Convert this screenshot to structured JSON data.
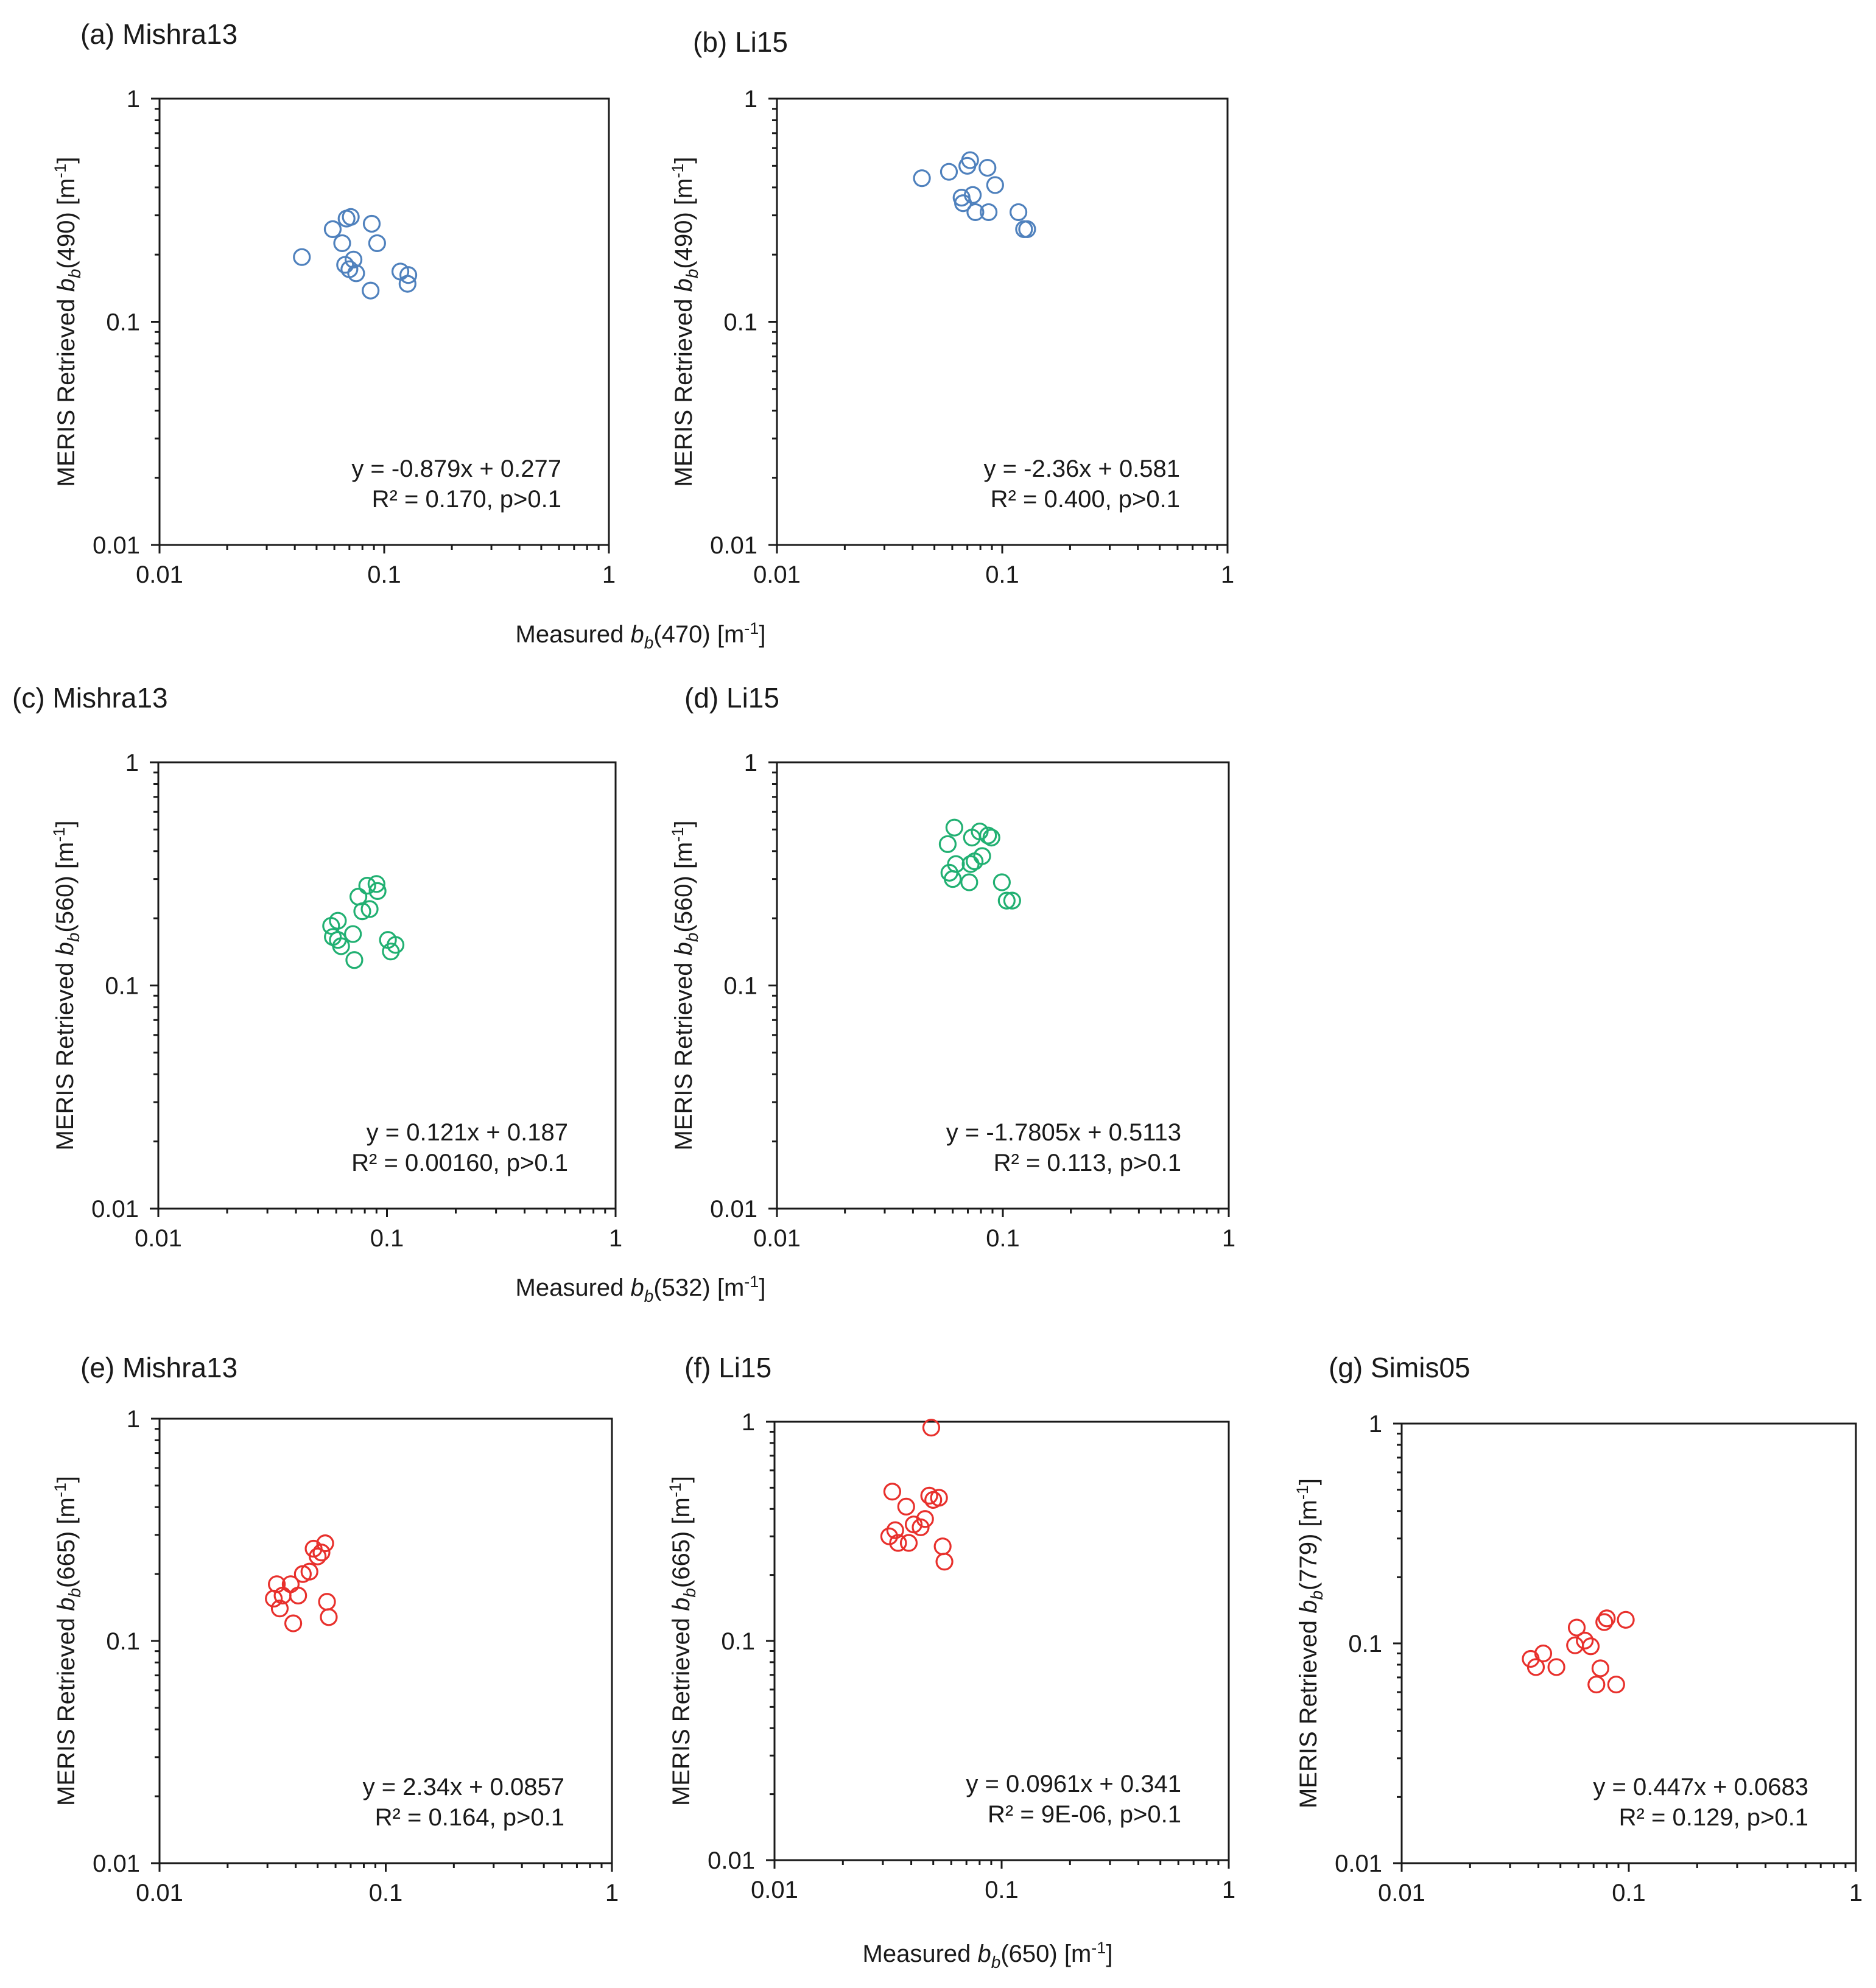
{
  "chart_data": [
    {
      "type": "scatter",
      "title": "(a) Mishra13",
      "ylabel_main": "MERIS Retrieved ",
      "ylabel_sym": "b",
      "ylabel_sub": "b",
      "ylabel_rest": "(490) [m",
      "ylabel_sup": "-1",
      "ylabel_end": "]",
      "xlim": [
        0.01,
        1
      ],
      "ylim": [
        0.01,
        1
      ],
      "xscale": "log",
      "yscale": "log",
      "tick_labels": [
        "0.01",
        "0.1",
        "1"
      ],
      "annotation": [
        "y = -0.879x + 0.277",
        "R² = 0.170, p>0.1"
      ],
      "color": "#4f81bd",
      "points": [
        [
          0.043,
          0.195
        ],
        [
          0.059,
          0.26
        ],
        [
          0.065,
          0.225
        ],
        [
          0.068,
          0.29
        ],
        [
          0.071,
          0.295
        ],
        [
          0.067,
          0.18
        ],
        [
          0.07,
          0.172
        ],
        [
          0.073,
          0.19
        ],
        [
          0.075,
          0.165
        ],
        [
          0.088,
          0.275
        ],
        [
          0.093,
          0.225
        ],
        [
          0.087,
          0.138
        ],
        [
          0.118,
          0.168
        ],
        [
          0.127,
          0.148
        ],
        [
          0.128,
          0.162
        ]
      ]
    },
    {
      "type": "scatter",
      "title": "(b) Li15",
      "ylabel_main": "MERIS Retrieved ",
      "ylabel_sym": "b",
      "ylabel_sub": "b",
      "ylabel_rest": "(490) [m",
      "ylabel_sup": "-1",
      "ylabel_end": "]",
      "xlim": [
        0.01,
        1
      ],
      "ylim": [
        0.01,
        1
      ],
      "xscale": "log",
      "yscale": "log",
      "tick_labels": [
        "0.01",
        "0.1",
        "1"
      ],
      "annotation": [
        "y = -2.36x + 0.581",
        "R² = 0.400, p>0.1"
      ],
      "color": "#4f81bd",
      "points": [
        [
          0.044,
          0.44
        ],
        [
          0.058,
          0.47
        ],
        [
          0.066,
          0.36
        ],
        [
          0.067,
          0.34
        ],
        [
          0.07,
          0.5
        ],
        [
          0.072,
          0.53
        ],
        [
          0.074,
          0.37
        ],
        [
          0.076,
          0.31
        ],
        [
          0.086,
          0.49
        ],
        [
          0.087,
          0.31
        ],
        [
          0.093,
          0.41
        ],
        [
          0.118,
          0.31
        ],
        [
          0.125,
          0.26
        ],
        [
          0.129,
          0.26
        ]
      ]
    },
    {
      "type": "scatter",
      "title": "(c) Mishra13",
      "ylabel_main": "MERIS Retrieved ",
      "ylabel_sym": "b",
      "ylabel_sub": "b",
      "ylabel_rest": "(560) [m",
      "ylabel_sup": "-1",
      "ylabel_end": "]",
      "xlim": [
        0.01,
        1
      ],
      "ylim": [
        0.01,
        1
      ],
      "xscale": "log",
      "yscale": "log",
      "tick_labels": [
        "0.01",
        "0.1",
        "1"
      ],
      "annotation": [
        "y = 0.121x + 0.187",
        "R² = 0.00160, p>0.1"
      ],
      "color": "#21b072",
      "points": [
        [
          0.057,
          0.185
        ],
        [
          0.058,
          0.165
        ],
        [
          0.061,
          0.195
        ],
        [
          0.061,
          0.16
        ],
        [
          0.063,
          0.15
        ],
        [
          0.071,
          0.17
        ],
        [
          0.072,
          0.13
        ],
        [
          0.075,
          0.25
        ],
        [
          0.078,
          0.215
        ],
        [
          0.082,
          0.28
        ],
        [
          0.084,
          0.22
        ],
        [
          0.09,
          0.285
        ],
        [
          0.091,
          0.265
        ],
        [
          0.101,
          0.16
        ],
        [
          0.104,
          0.142
        ],
        [
          0.109,
          0.152
        ]
      ]
    },
    {
      "type": "scatter",
      "title": "(d) Li15",
      "ylabel_main": "MERIS Retrieved ",
      "ylabel_sym": "b",
      "ylabel_sub": "b",
      "ylabel_rest": "(560) [m",
      "ylabel_sup": "-1",
      "ylabel_end": "]",
      "xlim": [
        0.01,
        1
      ],
      "ylim": [
        0.01,
        1
      ],
      "xscale": "log",
      "yscale": "log",
      "tick_labels": [
        "0.01",
        "0.1",
        "1"
      ],
      "annotation": [
        "y = -1.7805x + 0.5113",
        "R² = 0.113, p>0.1"
      ],
      "color": "#21b072",
      "points": [
        [
          0.057,
          0.43
        ],
        [
          0.058,
          0.32
        ],
        [
          0.06,
          0.3
        ],
        [
          0.061,
          0.51
        ],
        [
          0.062,
          0.35
        ],
        [
          0.071,
          0.29
        ],
        [
          0.072,
          0.35
        ],
        [
          0.073,
          0.46
        ],
        [
          0.075,
          0.36
        ],
        [
          0.079,
          0.49
        ],
        [
          0.081,
          0.38
        ],
        [
          0.086,
          0.47
        ],
        [
          0.089,
          0.46
        ],
        [
          0.099,
          0.29
        ],
        [
          0.104,
          0.24
        ],
        [
          0.11,
          0.24
        ]
      ]
    },
    {
      "type": "scatter",
      "title": "(e) Mishra13",
      "ylabel_main": "MERIS Retrieved ",
      "ylabel_sym": "b",
      "ylabel_sub": "b",
      "ylabel_rest": "(665) [m",
      "ylabel_sup": "-1",
      "ylabel_end": "]",
      "xlim": [
        0.01,
        1
      ],
      "ylim": [
        0.01,
        1
      ],
      "xscale": "log",
      "yscale": "log",
      "tick_labels": [
        "0.01",
        "0.1",
        "1"
      ],
      "annotation": [
        "y = 2.34x + 0.0857",
        "R² = 0.164, p>0.1"
      ],
      "color": "#e8302c",
      "points": [
        [
          0.032,
          0.155
        ],
        [
          0.033,
          0.18
        ],
        [
          0.034,
          0.14
        ],
        [
          0.035,
          0.16
        ],
        [
          0.038,
          0.18
        ],
        [
          0.039,
          0.12
        ],
        [
          0.041,
          0.16
        ],
        [
          0.043,
          0.2
        ],
        [
          0.046,
          0.205
        ],
        [
          0.048,
          0.26
        ],
        [
          0.05,
          0.24
        ],
        [
          0.052,
          0.25
        ],
        [
          0.054,
          0.275
        ],
        [
          0.055,
          0.15
        ],
        [
          0.056,
          0.128
        ]
      ]
    },
    {
      "type": "scatter",
      "title": "(f) Li15",
      "ylabel_main": "MERIS Retrieved ",
      "ylabel_sym": "b",
      "ylabel_sub": "b",
      "ylabel_rest": "(665) [m",
      "ylabel_sup": "-1",
      "ylabel_end": "]",
      "xlim": [
        0.01,
        1
      ],
      "ylim": [
        0.01,
        1
      ],
      "xscale": "log",
      "yscale": "log",
      "tick_labels": [
        "0.01",
        "0.1",
        "1"
      ],
      "annotation": [
        "y = 0.0961x + 0.341",
        "R² = 9E-06, p>0.1"
      ],
      "color": "#e8302c",
      "points": [
        [
          0.032,
          0.3
        ],
        [
          0.033,
          0.48
        ],
        [
          0.034,
          0.32
        ],
        [
          0.035,
          0.28
        ],
        [
          0.038,
          0.41
        ],
        [
          0.039,
          0.28
        ],
        [
          0.041,
          0.34
        ],
        [
          0.044,
          0.33
        ],
        [
          0.046,
          0.36
        ],
        [
          0.048,
          0.46
        ],
        [
          0.049,
          0.94
        ],
        [
          0.05,
          0.44
        ],
        [
          0.053,
          0.45
        ],
        [
          0.055,
          0.27
        ],
        [
          0.056,
          0.23
        ]
      ]
    },
    {
      "type": "scatter",
      "title": "(g) Simis05",
      "ylabel_main": "MERIS Retrieved ",
      "ylabel_sym": "b",
      "ylabel_sub": "b",
      "ylabel_rest": "(779) [m",
      "ylabel_sup": "-1",
      "ylabel_end": "]",
      "xlim": [
        0.01,
        1
      ],
      "ylim": [
        0.01,
        1
      ],
      "xscale": "log",
      "yscale": "log",
      "tick_labels": [
        "0.01",
        "0.1",
        "1"
      ],
      "annotation": [
        "y = 0.447x + 0.0683",
        "R² = 0.129, p>0.1"
      ],
      "color": "#e8302c",
      "points": [
        [
          0.037,
          0.085
        ],
        [
          0.039,
          0.078
        ],
        [
          0.042,
          0.09
        ],
        [
          0.048,
          0.078
        ],
        [
          0.058,
          0.098
        ],
        [
          0.059,
          0.118
        ],
        [
          0.064,
          0.103
        ],
        [
          0.068,
          0.097
        ],
        [
          0.072,
          0.065
        ],
        [
          0.075,
          0.077
        ],
        [
          0.078,
          0.125
        ],
        [
          0.08,
          0.13
        ],
        [
          0.088,
          0.065
        ],
        [
          0.097,
          0.128
        ]
      ]
    }
  ],
  "shared_xlabels": [
    {
      "main": "Measured ",
      "sym": "b",
      "sub": "b",
      "rest": "(470) [m",
      "sup": "-1",
      "end": "]"
    },
    {
      "main": "Measured ",
      "sym": "b",
      "sub": "b",
      "rest": "(532) [m",
      "sup": "-1",
      "end": "]"
    },
    {
      "main": "Measured ",
      "sym": "b",
      "sub": "b",
      "rest": "(650) [m",
      "sup": "-1",
      "end": "]"
    }
  ]
}
